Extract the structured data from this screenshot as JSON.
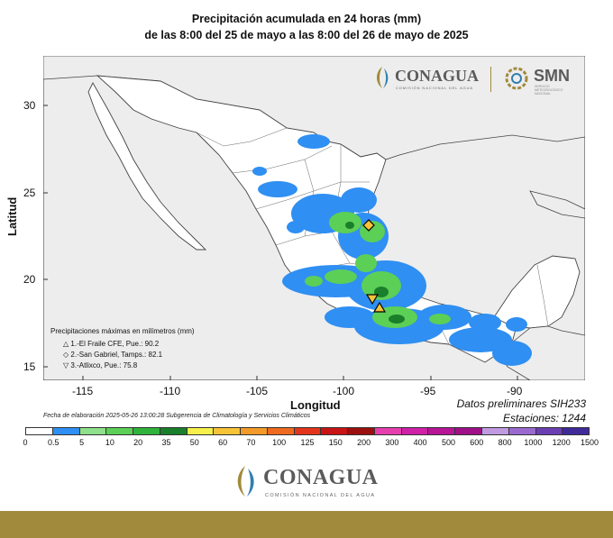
{
  "title_line1": "Precipitación acumulada en 24 horas (mm)",
  "title_line2": "de las 8:00 del 25 de mayo a las 8:00 del 26 de mayo de 2025",
  "axes": {
    "ylabel": "Latitud",
    "xlabel": "Longitud",
    "lat_ticks": [
      "30",
      "25",
      "20",
      "15"
    ],
    "lon_ticks": [
      "-115",
      "-110",
      "-105",
      "-100",
      "-95",
      "-90"
    ]
  },
  "logos": {
    "conagua_name": "CONAGUA",
    "conagua_sub": "COMISIÓN NACIONAL DEL AGUA",
    "smn_name": "SMN",
    "smn_sub": "SERVICIO METEOROLÓGICO NACIONAL"
  },
  "preliminary": {
    "line1": "Datos preliminares SIH233",
    "line2": "Estaciones:  1244"
  },
  "elaboration_note": "Fecha de elaboración 2025-05-26 13:00:28 Subgerencia de Climatología y Servicios Climáticos",
  "max_precip_legend": {
    "title": "Precipitaciones máximas en milímetros (mm)",
    "entries": [
      {
        "symbol": "△",
        "text": "1.-El Fraile CFE, Pue.: 90.2"
      },
      {
        "symbol": "◇",
        "text": "2.-San Gabriel, Tamps.: 82.1"
      },
      {
        "symbol": "▽",
        "text": "3.-Atlixco, Pue.: 75.8"
      }
    ]
  },
  "colorbar": {
    "labels": [
      "0",
      "0.5",
      "5",
      "10",
      "20",
      "35",
      "50",
      "60",
      "70",
      "100",
      "125",
      "150",
      "200",
      "300",
      "400",
      "500",
      "600",
      "800",
      "1000",
      "1200",
      "1500"
    ],
    "colors": [
      "#ffffff",
      "#2f8ff2",
      "#8fe08a",
      "#5ccf57",
      "#2fb33b",
      "#1a7f2a",
      "#f7f04a",
      "#f7c338",
      "#f39a28",
      "#ee6a1f",
      "#e3341c",
      "#c81414",
      "#9c0f0f",
      "#e63fae",
      "#d020a8",
      "#b71496",
      "#a01089",
      "#c09ae0",
      "#9a6ad0",
      "#6b3fb3",
      "#402a9a"
    ]
  },
  "map_colors": {
    "land": "#ffffff",
    "outside": "#ededed",
    "border": "#444444",
    "light_rain": "#2f8ff2",
    "moderate_rain": "#5ccf57",
    "heavy_rain": "#1a7f2a"
  }
}
